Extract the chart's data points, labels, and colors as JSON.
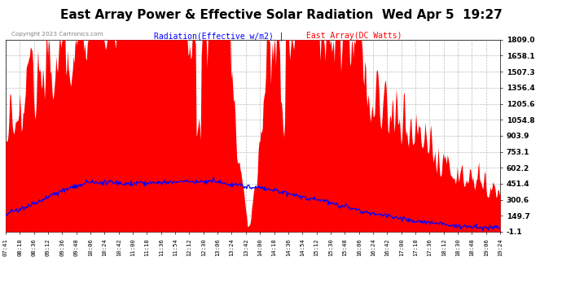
{
  "title": "East Array Power & Effective Solar Radiation  Wed Apr 5  19:27",
  "legend_radiation": "Radiation(Effective w/m2)",
  "legend_east": "East Array(DC Watts)",
  "copyright": "Copyright 2023 Cartronics.com",
  "yticks": [
    1809.0,
    1658.1,
    1507.3,
    1356.4,
    1205.6,
    1054.8,
    903.9,
    753.1,
    602.2,
    451.4,
    300.6,
    149.7,
    -1.1
  ],
  "ymin": -1.1,
  "ymax": 1809.0,
  "bg_color": "#ffffff",
  "plot_bg_color": "#ffffff",
  "grid_color": "#bbbbbb",
  "red_fill_color": "#ff0000",
  "blue_line_color": "#0000ff",
  "title_fontsize": 11,
  "xtick_labels": [
    "07:41",
    "08:18",
    "08:36",
    "09:12",
    "09:36",
    "09:48",
    "10:06",
    "10:24",
    "10:42",
    "11:00",
    "11:18",
    "11:36",
    "11:54",
    "12:12",
    "12:30",
    "13:06",
    "13:24",
    "13:42",
    "14:00",
    "14:18",
    "14:36",
    "14:54",
    "15:12",
    "15:30",
    "15:48",
    "16:06",
    "16:24",
    "16:42",
    "17:00",
    "17:18",
    "17:36",
    "18:12",
    "18:30",
    "18:48",
    "19:06",
    "19:24"
  ]
}
